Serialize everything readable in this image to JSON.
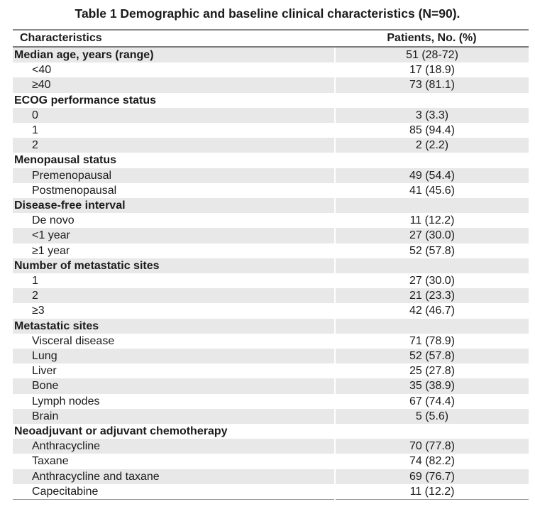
{
  "title": "Table 1 Demographic and baseline clinical characteristics (N=90).",
  "table": {
    "columns": [
      "Characteristics",
      "Patients, No. (%)"
    ],
    "rows": [
      {
        "label": "Median age, years (range)",
        "value": "51 (28-72)",
        "category": true
      },
      {
        "label": "<40",
        "value": "17 (18.9)",
        "category": false
      },
      {
        "label": "≥40",
        "value": "73 (81.1)",
        "category": false
      },
      {
        "label": "ECOG performance status",
        "value": "",
        "category": true
      },
      {
        "label": "0",
        "value": "3 (3.3)",
        "category": false
      },
      {
        "label": "1",
        "value": "85 (94.4)",
        "category": false
      },
      {
        "label": "2",
        "value": "2 (2.2)",
        "category": false
      },
      {
        "label": "Menopausal status",
        "value": "",
        "category": true
      },
      {
        "label": "Premenopausal",
        "value": "49 (54.4)",
        "category": false
      },
      {
        "label": "Postmenopausal",
        "value": "41 (45.6)",
        "category": false
      },
      {
        "label": "Disease-free interval",
        "value": "",
        "category": true
      },
      {
        "label": "De novo",
        "value": "11 (12.2)",
        "category": false
      },
      {
        "label": "<1 year",
        "value": "27 (30.0)",
        "category": false
      },
      {
        "label": "≥1 year",
        "value": "52 (57.8)",
        "category": false
      },
      {
        "label": "Number of metastatic sites",
        "value": "",
        "category": true
      },
      {
        "label": "1",
        "value": "27 (30.0)",
        "category": false
      },
      {
        "label": "2",
        "value": "21 (23.3)",
        "category": false
      },
      {
        "label": "≥3",
        "value": "42 (46.7)",
        "category": false
      },
      {
        "label": "Metastatic sites",
        "value": "",
        "category": true
      },
      {
        "label": "Visceral disease",
        "value": "71 (78.9)",
        "category": false
      },
      {
        "label": "Lung",
        "value": "52 (57.8)",
        "category": false
      },
      {
        "label": "Liver",
        "value": "25 (27.8)",
        "category": false
      },
      {
        "label": "Bone",
        "value": "35 (38.9)",
        "category": false
      },
      {
        "label": "Lymph nodes",
        "value": "67 (74.4)",
        "category": false
      },
      {
        "label": "Brain",
        "value": "5 (5.6)",
        "category": false
      },
      {
        "label": "Neoadjuvant or adjuvant chemotherapy",
        "value": "",
        "category": true
      },
      {
        "label": "Anthracycline",
        "value": "70 (77.8)",
        "category": false
      },
      {
        "label": "Taxane",
        "value": "74 (82.2)",
        "category": false
      },
      {
        "label": "Anthracycline and taxane",
        "value": "69 (76.7)",
        "category": false
      },
      {
        "label": "Capecitabine",
        "value": "11 (12.2)",
        "category": false
      }
    ]
  },
  "colors": {
    "row_stripe": "#e8e8e8",
    "rule_top": "#8a8a8a",
    "rule_header": "#7d7d7d",
    "rule_bottom": "#949494",
    "text": "#1b1b1b",
    "background": "#ffffff"
  }
}
